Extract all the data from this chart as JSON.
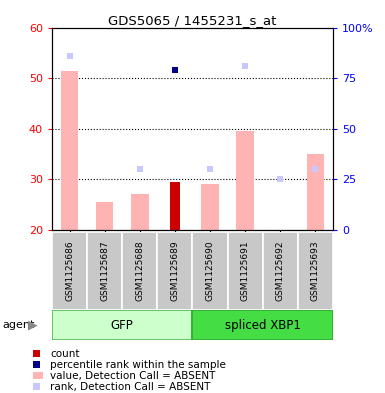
{
  "title": "GDS5065 / 1455231_s_at",
  "samples": [
    "GSM1125686",
    "GSM1125687",
    "GSM1125688",
    "GSM1125689",
    "GSM1125690",
    "GSM1125691",
    "GSM1125692",
    "GSM1125693"
  ],
  "groups": [
    "GFP",
    "GFP",
    "GFP",
    "GFP",
    "spliced XBP1",
    "spliced XBP1",
    "spliced XBP1",
    "spliced XBP1"
  ],
  "value_absent": [
    51.5,
    25.5,
    27.0,
    null,
    29.0,
    39.5,
    null,
    35.0
  ],
  "rank_absent_pct": [
    86.0,
    null,
    30.0,
    null,
    30.0,
    81.0,
    25.0,
    30.0
  ],
  "count_present": [
    null,
    null,
    null,
    29.5,
    null,
    null,
    null,
    null
  ],
  "percentile_present_pct": [
    null,
    null,
    null,
    79.0,
    null,
    null,
    null,
    null
  ],
  "ylim_left": [
    20,
    60
  ],
  "ylim_right": [
    0,
    100
  ],
  "yticks_left": [
    20,
    30,
    40,
    50,
    60
  ],
  "yticks_right": [
    0,
    25,
    50,
    75,
    100
  ],
  "ytick_labels_left": [
    "20",
    "30",
    "40",
    "50",
    "60"
  ],
  "ytick_labels_right": [
    "0",
    "25",
    "50",
    "75",
    "100%"
  ],
  "color_value_absent": "#ffb3b3",
  "color_rank_absent": "#c8c8ff",
  "color_count": "#cc0000",
  "color_percentile": "#00008b",
  "color_gfp_light": "#ccffcc",
  "color_xbp1_green": "#44dd44",
  "color_sample_box": "#c8c8c8"
}
